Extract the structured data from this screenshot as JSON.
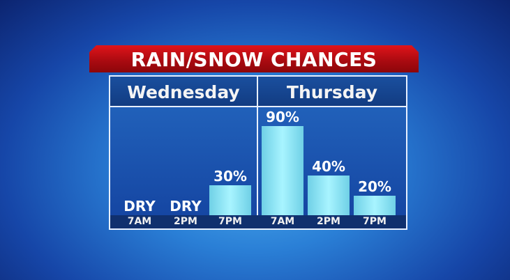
{
  "chart_data": {
    "type": "bar",
    "title": "RAIN/SNOW CHANCES",
    "groups": [
      {
        "day": "Wednesday",
        "categories": [
          "7AM",
          "2PM",
          "7PM"
        ],
        "values": [
          0,
          0,
          30
        ],
        "labels": [
          "DRY",
          "DRY",
          "30%"
        ]
      },
      {
        "day": "Thursday",
        "categories": [
          "7AM",
          "2PM",
          "7PM"
        ],
        "values": [
          90,
          40,
          20
        ],
        "labels": [
          "90%",
          "40%",
          "20%"
        ]
      }
    ],
    "ylim": [
      0,
      100
    ],
    "unit": "%",
    "colors": {
      "bar": "#8ee6f6",
      "banner": "#c00d12",
      "panel": "#1a50ad"
    }
  }
}
